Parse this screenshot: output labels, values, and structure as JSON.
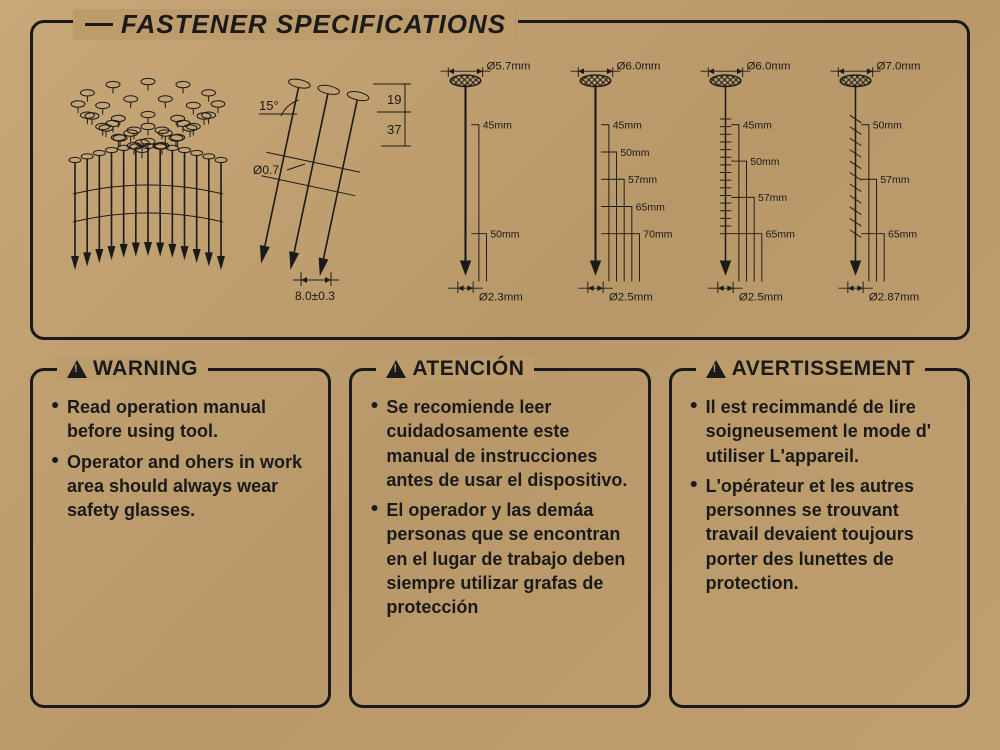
{
  "spec": {
    "title": "FASTENER SPECIFICATIONS",
    "coil": {
      "type": "coil-nails-illustration"
    },
    "angle_diagram": {
      "angle_label": "15°",
      "wire_dia_label": "Ø0.7",
      "pitch_label": "8.0±0.3",
      "dim_a": "19",
      "dim_b": "37"
    },
    "nails": [
      {
        "head": "Ø5.7mm",
        "shank": "Ø2.3mm",
        "lengths": [
          "45mm",
          "50mm"
        ],
        "style": "smooth"
      },
      {
        "head": "Ø6.0mm",
        "shank": "Ø2.5mm",
        "lengths": [
          "45mm",
          "50mm",
          "57mm",
          "65mm",
          "70mm"
        ],
        "style": "smooth"
      },
      {
        "head": "Ø6.0mm",
        "shank": "Ø2.5mm",
        "lengths": [
          "45mm",
          "50mm",
          "57mm",
          "65mm"
        ],
        "style": "ring"
      },
      {
        "head": "Ø7.0mm",
        "shank": "Ø2.87mm",
        "lengths": [
          "50mm",
          "57mm",
          "65mm"
        ],
        "style": "screw"
      }
    ]
  },
  "warnings": [
    {
      "title": "WARNING",
      "items": [
        "Read operation manual before using tool.",
        "Operator and ohers in work area should always wear safety glasses."
      ]
    },
    {
      "title": "ATENCIÓN",
      "items": [
        "Se recomiende leer cuidadosamente este manual de instrucciones antes de usar el dispositivo.",
        "El operador y las demáa personas que se encontran en el lugar de trabajo deben siempre utilizar grafas de protección"
      ]
    },
    {
      "title": "AVERTISSEMENT",
      "items": [
        "Il est recimmandé de lire soigneusement le mode d' utiliser L'appareil.",
        "L'opérateur et les autres personnes se trouvant travail devaient toujours porter des lunettes de protection."
      ]
    }
  ],
  "colors": {
    "ink": "#1a1a1a",
    "cardboard": "#bd9c6c"
  }
}
